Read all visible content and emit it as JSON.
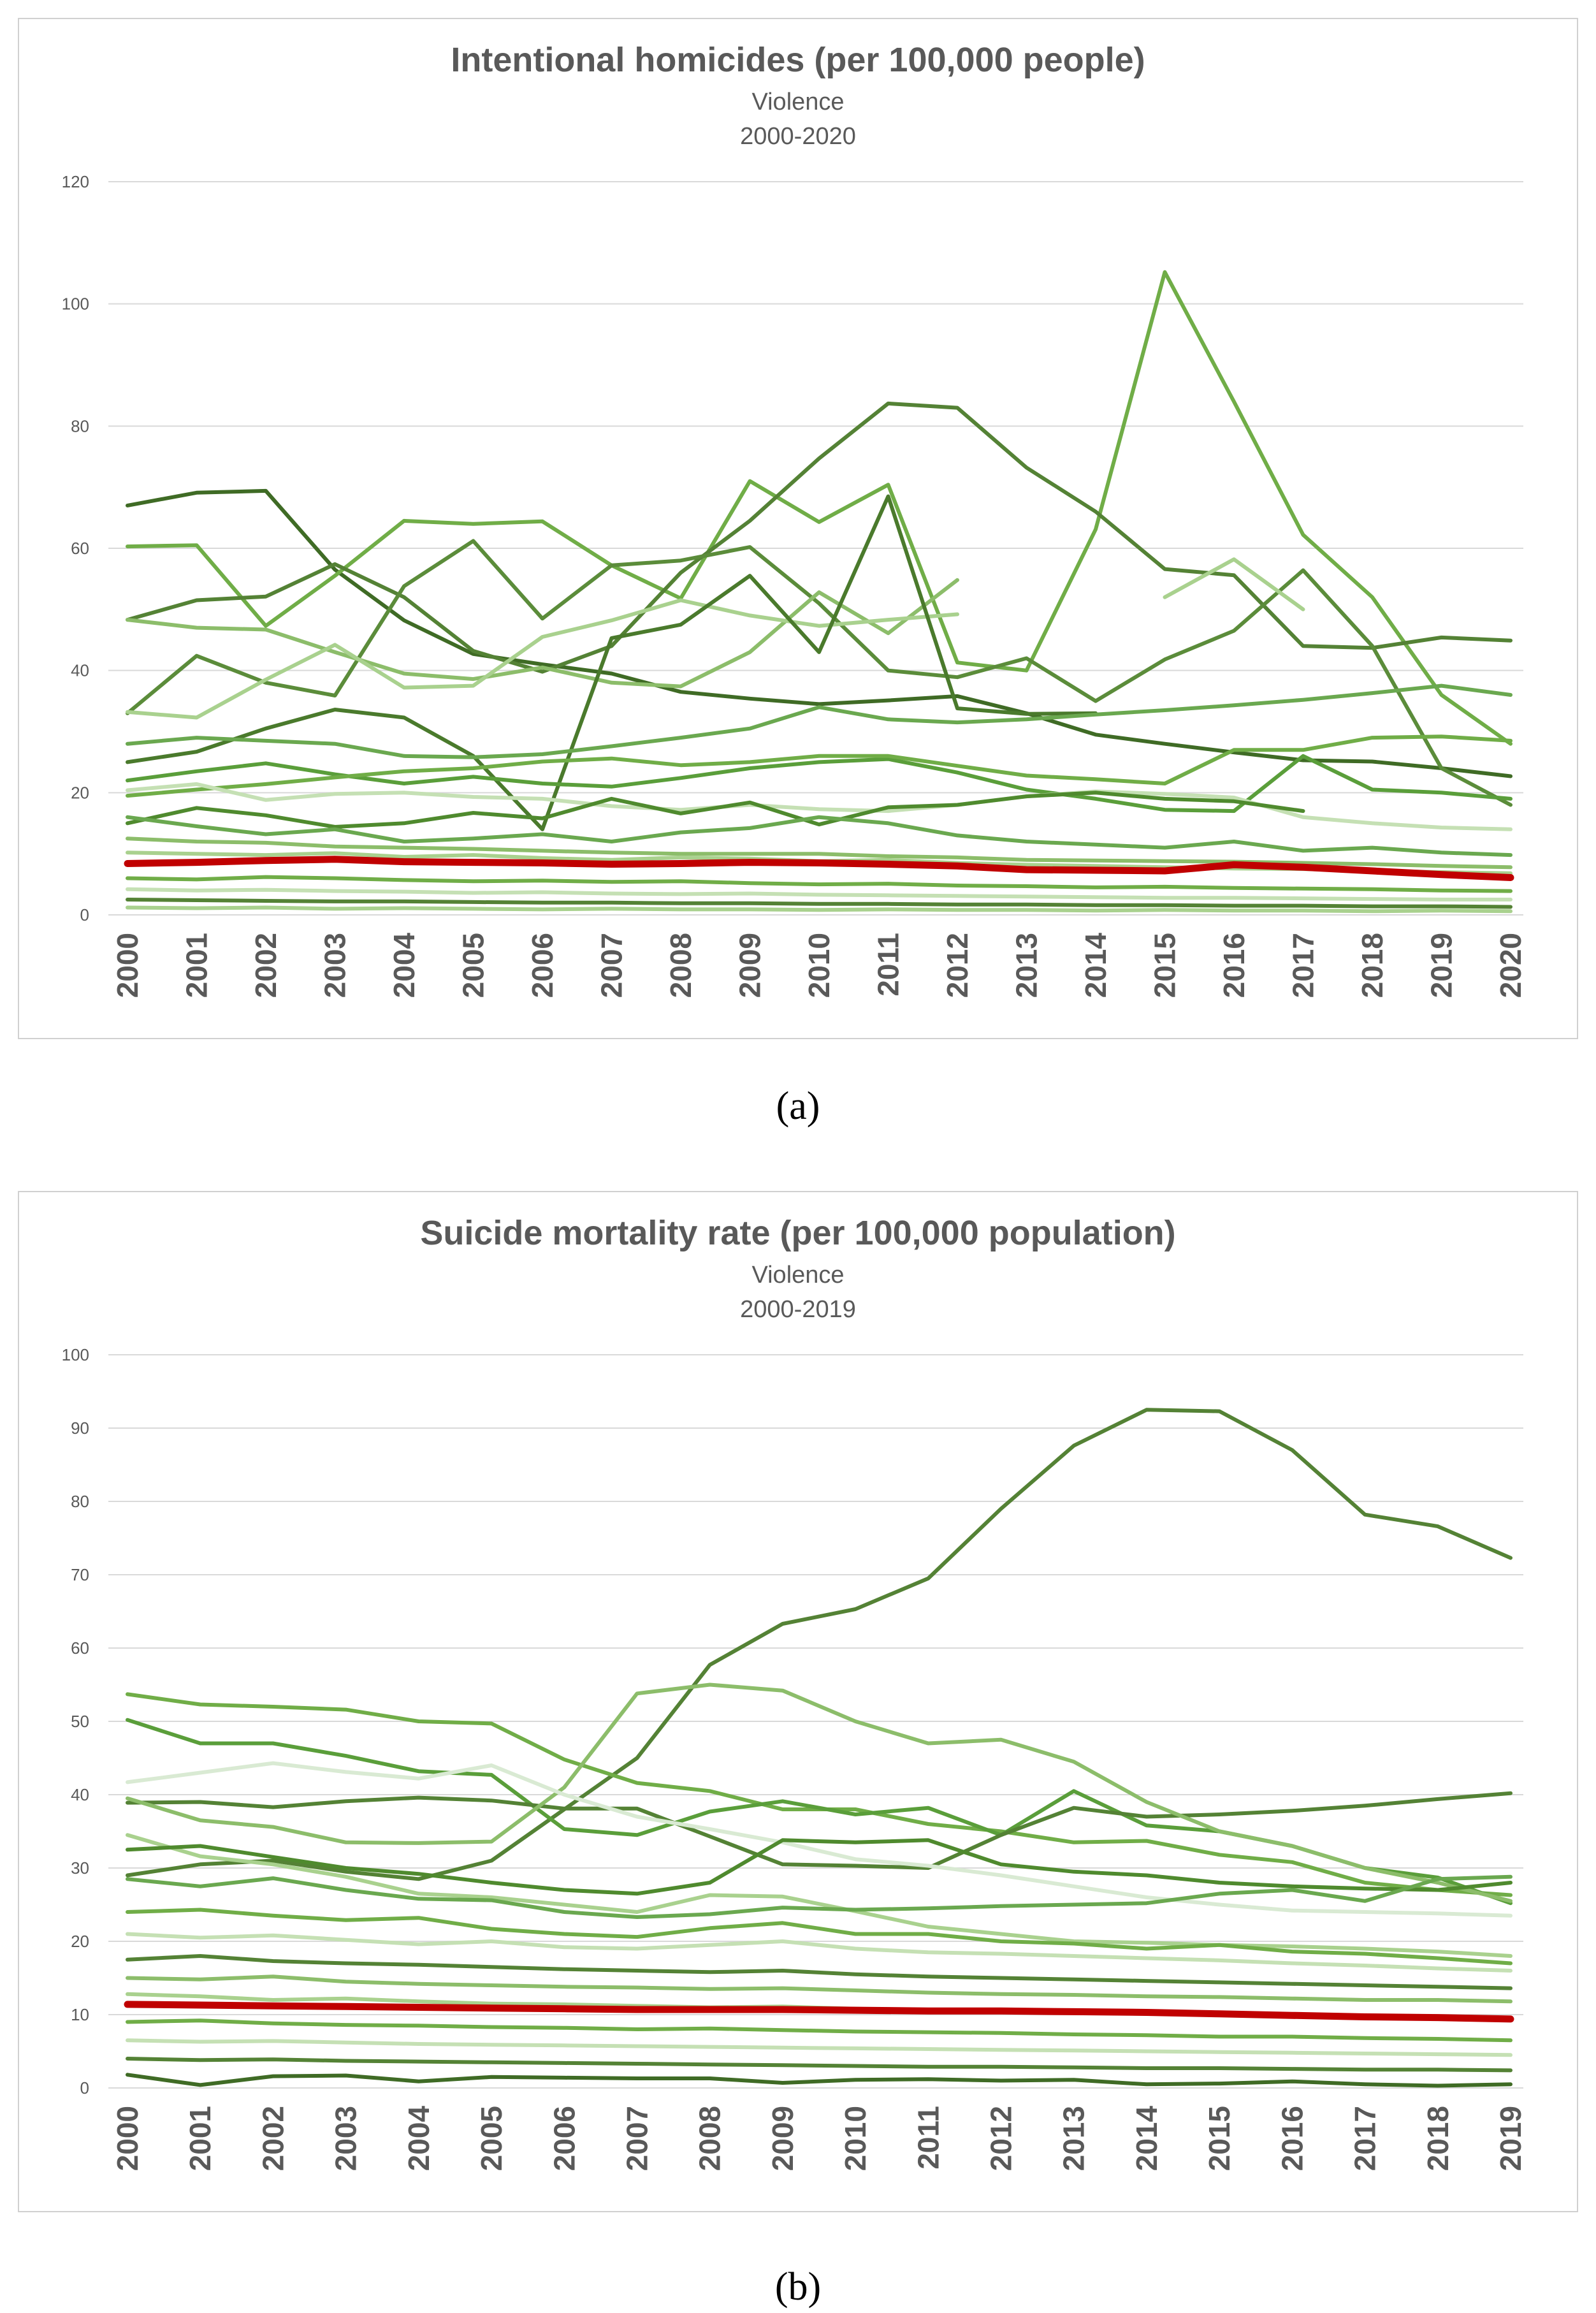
{
  "figure": {
    "captions": [
      "(a)",
      "(b)"
    ]
  },
  "chart_data": [
    {
      "type": "line",
      "title": "Intentional homicides (per 100,000 people)",
      "subtitle": "Violence",
      "subtitle2": "2000-2020",
      "x": [
        "2000",
        "2001",
        "2002",
        "2003",
        "2004",
        "2005",
        "2006",
        "2007",
        "2008",
        "2009",
        "2010",
        "2011",
        "2012",
        "2013",
        "2014",
        "2015",
        "2016",
        "2017",
        "2018",
        "2019",
        "2020"
      ],
      "ylim": [
        0,
        120
      ],
      "yticks": [
        0,
        20,
        40,
        60,
        80,
        100,
        120
      ],
      "grid": true,
      "legend": "none",
      "highlight_color": "#c00000",
      "series": [
        {
          "values": [
            67.0,
            69.1,
            69.4,
            56.5,
            48.2,
            42.7,
            41.0,
            39.5,
            36.5,
            35.4,
            34.5,
            35.1,
            35.8,
            33.0,
            29.5,
            28.0,
            26.6,
            25.3,
            25.1,
            24.0,
            22.7
          ],
          "color": "#3f6b25"
        },
        {
          "values": [
            60.3,
            60.5,
            47.3,
            55.5,
            64.5,
            64.0,
            64.4,
            57.2,
            51.8,
            71.0,
            64.3,
            70.4,
            41.3,
            40.0,
            63.1,
            105.2,
            84.0,
            62.2,
            52.0,
            36.0,
            28.0
          ],
          "color": "#70ad47"
        },
        {
          "values": [
            48.3,
            51.5,
            52.1,
            57.4,
            52.0,
            43.2,
            39.8,
            44.0,
            56.0,
            64.5,
            74.7,
            83.7,
            83.0,
            73.2,
            66.0,
            56.6,
            55.6,
            44.0,
            43.7,
            45.4,
            44.9
          ],
          "color": "#548235"
        },
        {
          "values": [
            33.0,
            42.4,
            38.0,
            35.9,
            53.8,
            61.2,
            48.5,
            57.2,
            58.0,
            60.2,
            51.0,
            40.0,
            38.9,
            42.0,
            35.0,
            41.8,
            46.5,
            56.4,
            44.0,
            24.0,
            18.0
          ],
          "color": "#5b8c3a"
        },
        {
          "values": [
            48.3,
            47.0,
            46.7,
            43.0,
            39.5,
            38.6,
            40.5,
            38.0,
            37.4,
            43.0,
            52.8,
            46.1,
            54.8,
            null,
            null,
            null,
            null,
            null,
            null,
            null,
            null
          ],
          "color": "#8cbd6a"
        },
        {
          "values": [
            33.2,
            32.3,
            38.5,
            44.2,
            37.2,
            37.5,
            45.5,
            48.2,
            51.5,
            49.0,
            47.3,
            48.3,
            49.2,
            null,
            null,
            52.0,
            58.2,
            50.0,
            null,
            null,
            null
          ],
          "color": "#a9d18e"
        },
        {
          "values": [
            25.0,
            26.7,
            30.5,
            33.6,
            32.3,
            26.0,
            14.0,
            45.3,
            47.5,
            55.5,
            43.0,
            68.5,
            33.8,
            32.9,
            33.0,
            null,
            null,
            null,
            null,
            null,
            null
          ],
          "color": "#4a7a2c"
        },
        {
          "values": [
            28.0,
            29.0,
            28.5,
            28.0,
            26.0,
            25.8,
            26.3,
            27.6,
            29.0,
            30.5,
            34.0,
            32.0,
            31.5,
            32.0,
            32.8,
            33.5,
            34.3,
            35.2,
            36.3,
            37.5,
            36.0
          ],
          "color": "#6aa84f"
        },
        {
          "values": [
            22.0,
            23.5,
            24.8,
            23.0,
            21.5,
            22.6,
            21.5,
            21.0,
            22.4,
            24.0,
            25.0,
            25.5,
            23.3,
            20.5,
            19.0,
            17.2,
            17.0,
            26.0,
            20.5,
            20.0,
            19.0
          ],
          "color": "#5a9e3a"
        },
        {
          "values": [
            19.5,
            20.5,
            21.4,
            22.5,
            23.5,
            24.0,
            25.1,
            25.6,
            24.5,
            25.0,
            26.0,
            26.0,
            24.4,
            22.8,
            22.2,
            21.5,
            27.0,
            27.0,
            29.0,
            29.2,
            28.5
          ],
          "color": "#70ad47"
        },
        {
          "values": [
            20.4,
            21.4,
            18.8,
            19.8,
            20.0,
            19.3,
            19.0,
            17.8,
            17.2,
            18.0,
            17.3,
            17.0,
            18.0,
            19.4,
            20.2,
            19.8,
            19.2,
            16.0,
            15.0,
            14.3,
            14.0
          ],
          "color": "#c5e0b4"
        },
        {
          "values": [
            15.0,
            17.5,
            16.3,
            14.4,
            15.0,
            16.7,
            15.8,
            19.0,
            16.6,
            18.4,
            14.8,
            17.6,
            18.0,
            19.4,
            20.0,
            19.0,
            18.6,
            17.0,
            null,
            null,
            null
          ],
          "color": "#4f8a2e"
        },
        {
          "values": [
            16.0,
            14.5,
            13.2,
            14.0,
            12.0,
            12.5,
            13.2,
            12.0,
            13.5,
            14.2,
            16.0,
            15.0,
            13.0,
            12.0,
            11.5,
            11.0,
            12.0,
            10.5,
            11.0,
            10.2,
            9.8
          ],
          "color": "#6aa84f"
        },
        {
          "values": [
            12.5,
            12.0,
            11.8,
            11.2,
            11.0,
            10.8,
            10.5,
            10.2,
            10.0,
            10.0,
            10.0,
            9.6,
            9.4,
            9.0,
            8.9,
            8.8,
            8.7,
            8.5,
            8.3,
            8.0,
            7.8
          ],
          "color": "#8cbd6a"
        },
        {
          "values": [
            10.2,
            10.0,
            9.8,
            10.1,
            9.5,
            9.8,
            9.3,
            9.0,
            9.4,
            9.2,
            8.8,
            9.0,
            8.5,
            8.2,
            8.0,
            7.8,
            7.6,
            7.5,
            7.2,
            7.0,
            6.8
          ],
          "color": "#a9d18e"
        },
        {
          "values": [
            6.0,
            5.8,
            6.2,
            6.0,
            5.7,
            5.5,
            5.6,
            5.4,
            5.5,
            5.2,
            5.0,
            5.1,
            4.8,
            4.7,
            4.5,
            4.6,
            4.4,
            4.3,
            4.2,
            4.0,
            3.9
          ],
          "color": "#70ad47"
        },
        {
          "values": [
            4.2,
            4.0,
            4.1,
            3.9,
            3.8,
            3.6,
            3.7,
            3.5,
            3.4,
            3.5,
            3.3,
            3.2,
            3.1,
            3.0,
            2.9,
            2.8,
            2.8,
            2.7,
            2.6,
            2.5,
            2.5
          ],
          "color": "#c5e0b4"
        },
        {
          "values": [
            2.5,
            2.4,
            2.3,
            2.2,
            2.2,
            2.1,
            2.0,
            2.0,
            1.9,
            1.9,
            1.8,
            1.8,
            1.7,
            1.7,
            1.6,
            1.6,
            1.5,
            1.5,
            1.4,
            1.4,
            1.3
          ],
          "color": "#548235"
        },
        {
          "values": [
            1.2,
            1.1,
            1.2,
            1.0,
            1.1,
            1.0,
            0.9,
            1.0,
            0.9,
            0.9,
            0.8,
            0.9,
            0.8,
            0.8,
            0.7,
            0.8,
            0.7,
            0.7,
            0.6,
            0.7,
            0.6
          ],
          "color": "#a9d18e"
        },
        {
          "values": [
            8.4,
            8.6,
            8.9,
            9.1,
            8.7,
            8.6,
            8.5,
            8.3,
            8.4,
            8.6,
            8.5,
            8.3,
            8.0,
            7.4,
            7.3,
            7.2,
            8.2,
            7.8,
            7.2,
            6.6,
            6.1
          ],
          "color": "#c00000",
          "highlight": true
        }
      ]
    },
    {
      "type": "line",
      "title": "Suicide mortality rate (per 100,000 population)",
      "subtitle": "Violence",
      "subtitle2": "2000-2019",
      "x": [
        "2000",
        "2001",
        "2002",
        "2003",
        "2004",
        "2005",
        "2006",
        "2007",
        "2008",
        "2009",
        "2010",
        "2011",
        "2012",
        "2013",
        "2014",
        "2015",
        "2016",
        "2017",
        "2018",
        "2019"
      ],
      "ylim": [
        0,
        100
      ],
      "yticks": [
        0,
        10,
        20,
        30,
        40,
        50,
        60,
        70,
        80,
        90,
        100
      ],
      "grid": true,
      "legend": "none",
      "highlight_color": "#c00000",
      "series": [
        {
          "values": [
            29.0,
            30.5,
            31.0,
            29.5,
            28.5,
            31.0,
            38.0,
            45.0,
            57.7,
            63.3,
            65.3,
            69.5,
            79.0,
            87.6,
            92.5,
            92.3,
            87.0,
            78.2,
            76.6,
            72.3
          ],
          "color": "#548235"
        },
        {
          "values": [
            53.7,
            52.3,
            52.0,
            51.6,
            50.0,
            49.7,
            44.8,
            41.6,
            40.5,
            38.0,
            38.0,
            36.0,
            35.0,
            33.5,
            33.7,
            31.8,
            30.8,
            28.0,
            27.0,
            26.3
          ],
          "color": "#70ad47"
        },
        {
          "values": [
            50.2,
            47.0,
            47.0,
            45.3,
            43.2,
            42.7,
            35.3,
            34.5,
            37.7,
            39.1,
            37.3,
            38.2,
            34.5,
            40.5,
            35.8,
            35.0,
            33.0,
            30.0,
            28.7,
            25.2
          ],
          "color": "#5a9e3a"
        },
        {
          "values": [
            38.9,
            39.0,
            38.3,
            39.1,
            39.6,
            39.2,
            38.1,
            38.1,
            34.3,
            30.5,
            30.3,
            30.0,
            34.5,
            38.2,
            37.0,
            37.3,
            37.8,
            38.5,
            39.4,
            40.2
          ],
          "color": "#548235"
        },
        {
          "values": [
            39.5,
            36.5,
            35.6,
            33.5,
            33.4,
            33.6,
            41.0,
            53.8,
            55.0,
            54.2,
            50.0,
            47.0,
            47.5,
            44.5,
            39.0,
            35.0,
            33.0,
            30.0,
            28.0,
            25.5
          ],
          "color": "#8cbd6a"
        },
        {
          "values": [
            41.7,
            43.0,
            44.3,
            43.1,
            42.2,
            44.0,
            40.0,
            37.0,
            35.3,
            33.5,
            31.2,
            30.3,
            29.0,
            27.5,
            26.0,
            25.0,
            24.2,
            24.0,
            23.8,
            23.5
          ],
          "color": "#d9ead3"
        },
        {
          "values": [
            34.5,
            31.6,
            30.5,
            28.8,
            26.5,
            26.0,
            25.0,
            24.0,
            26.3,
            26.1,
            24.1,
            22.0,
            21.0,
            20.0,
            19.8,
            19.5,
            19.3,
            19.0,
            18.6,
            18.0
          ],
          "color": "#a9d18e"
        },
        {
          "values": [
            32.5,
            33.0,
            31.5,
            30.0,
            29.2,
            28.0,
            27.0,
            26.5,
            28.0,
            33.8,
            33.5,
            33.8,
            30.5,
            29.5,
            29.0,
            28.0,
            27.5,
            27.2,
            27.0,
            28.0
          ],
          "color": "#4f8a2e"
        },
        {
          "values": [
            28.5,
            27.5,
            28.6,
            27.0,
            25.8,
            25.6,
            24.0,
            23.3,
            23.7,
            24.6,
            24.3,
            24.5,
            24.8,
            25.0,
            25.2,
            26.5,
            27.0,
            25.5,
            28.5,
            28.8
          ],
          "color": "#6aa84f"
        },
        {
          "values": [
            24.0,
            24.3,
            23.5,
            22.9,
            23.2,
            21.7,
            21.0,
            20.6,
            21.8,
            22.5,
            21.0,
            21.0,
            20.0,
            19.7,
            19.0,
            19.5,
            18.6,
            18.3,
            17.7,
            17.0
          ],
          "color": "#70ad47"
        },
        {
          "values": [
            21.0,
            20.5,
            20.8,
            20.2,
            19.6,
            20.0,
            19.2,
            19.0,
            19.5,
            20.0,
            19.0,
            18.5,
            18.3,
            18.0,
            17.7,
            17.4,
            17.0,
            16.7,
            16.3,
            16.0
          ],
          "color": "#c5e0b4"
        },
        {
          "values": [
            17.5,
            18.0,
            17.3,
            17.0,
            16.8,
            16.5,
            16.2,
            16.0,
            15.8,
            16.0,
            15.5,
            15.2,
            15.0,
            14.8,
            14.6,
            14.4,
            14.2,
            14.0,
            13.8,
            13.6
          ],
          "color": "#548235"
        },
        {
          "values": [
            15.0,
            14.8,
            15.2,
            14.5,
            14.2,
            14.0,
            13.8,
            13.7,
            13.5,
            13.6,
            13.3,
            13.0,
            12.8,
            12.7,
            12.5,
            12.4,
            12.2,
            12.0,
            12.0,
            11.8
          ],
          "color": "#8cbd6a"
        },
        {
          "values": [
            12.8,
            12.5,
            12.0,
            12.2,
            11.8,
            11.5,
            11.4,
            11.2,
            11.0,
            11.1,
            10.8,
            10.6,
            10.4,
            10.3,
            10.1,
            10.0,
            9.8,
            9.7,
            9.5,
            9.3
          ],
          "color": "#a9d18e"
        },
        {
          "values": [
            9.0,
            9.2,
            8.8,
            8.6,
            8.5,
            8.3,
            8.2,
            8.0,
            8.1,
            7.9,
            7.7,
            7.6,
            7.5,
            7.3,
            7.2,
            7.0,
            7.0,
            6.8,
            6.7,
            6.5
          ],
          "color": "#70ad47"
        },
        {
          "values": [
            6.5,
            6.3,
            6.4,
            6.2,
            6.0,
            5.9,
            5.8,
            5.7,
            5.6,
            5.5,
            5.4,
            5.3,
            5.2,
            5.1,
            5.0,
            4.9,
            4.8,
            4.7,
            4.6,
            4.5
          ],
          "color": "#c5e0b4"
        },
        {
          "values": [
            4.0,
            3.8,
            3.9,
            3.7,
            3.6,
            3.5,
            3.4,
            3.3,
            3.2,
            3.1,
            3.0,
            2.9,
            2.9,
            2.8,
            2.7,
            2.7,
            2.6,
            2.5,
            2.5,
            2.4
          ],
          "color": "#548235"
        },
        {
          "values": [
            1.8,
            0.4,
            1.6,
            1.7,
            0.9,
            1.5,
            1.4,
            1.3,
            1.3,
            0.7,
            1.1,
            1.2,
            1.0,
            1.1,
            0.5,
            0.6,
            0.9,
            0.5,
            0.3,
            0.5
          ],
          "color": "#3f6b25"
        },
        {
          "values": [
            11.4,
            11.3,
            11.2,
            11.1,
            11.0,
            10.9,
            10.8,
            10.7,
            10.7,
            10.7,
            10.6,
            10.5,
            10.5,
            10.4,
            10.3,
            10.1,
            9.9,
            9.7,
            9.6,
            9.4
          ],
          "color": "#c00000",
          "highlight": true
        }
      ]
    }
  ]
}
